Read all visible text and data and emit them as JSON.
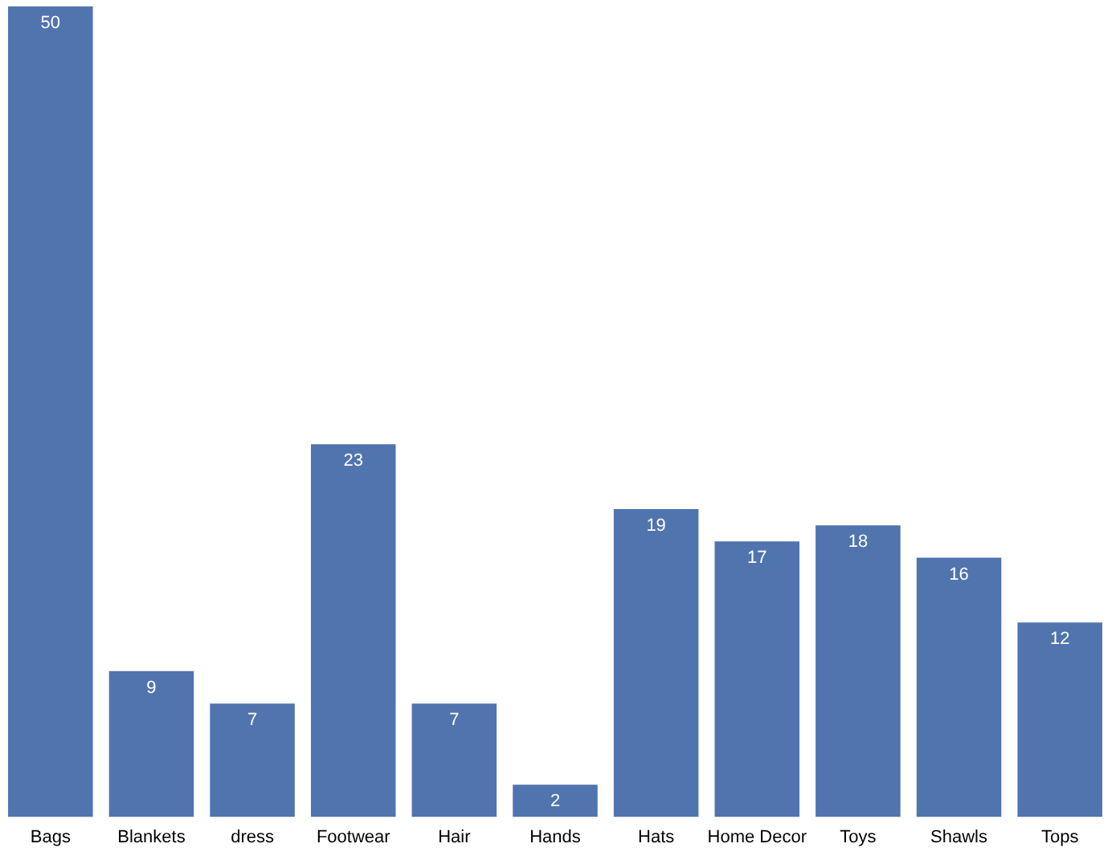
{
  "chart_data": {
    "type": "bar",
    "categories": [
      "Bags",
      "Blankets",
      "dress",
      "Footwear",
      "Hair",
      "Hands",
      "Hats",
      "Home Decor",
      "Toys",
      "Shawls",
      "Tops"
    ],
    "values": [
      50,
      9,
      7,
      23,
      7,
      2,
      19,
      17,
      18,
      16,
      12
    ],
    "color": "#5074ae",
    "data_labels": true,
    "grid": false,
    "legend": false
  }
}
